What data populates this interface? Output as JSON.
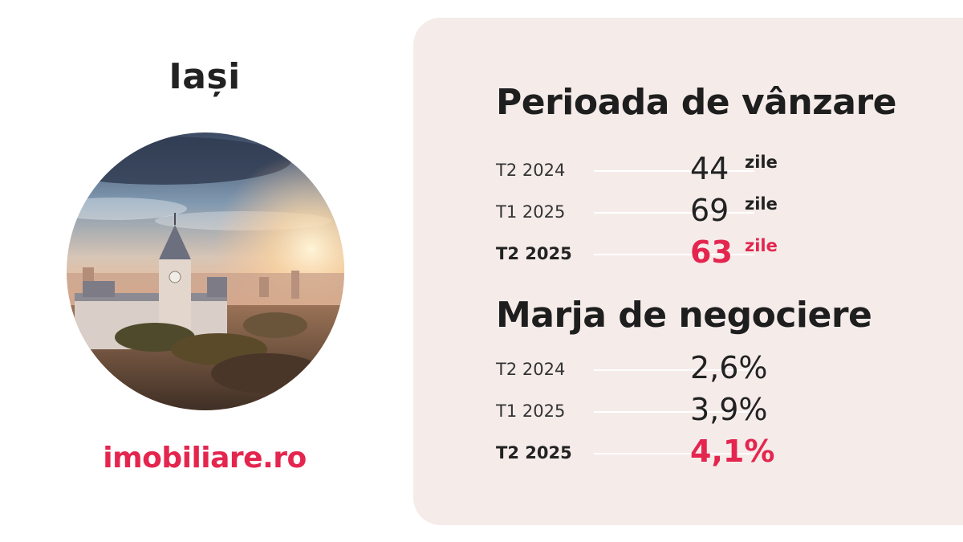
{
  "city": "Iași",
  "brand": {
    "prefix": "imobiliare.ro",
    "color": "#e4264f"
  },
  "sections": [
    {
      "title": "Perioada de vânzare",
      "rows": [
        {
          "period": "T2 2024",
          "value": "44",
          "unit": "zile"
        },
        {
          "period": "T1 2025",
          "value": "69",
          "unit": "zile"
        },
        {
          "period": "T2 2025",
          "value": "63",
          "unit": "zile",
          "highlight": true
        }
      ]
    },
    {
      "title": "Marja de negociere",
      "rows": [
        {
          "period": "T2 2024",
          "value": "2,6%"
        },
        {
          "period": "T1 2025",
          "value": "3,9%"
        },
        {
          "period": "T2 2025",
          "value": "4,1%",
          "highlight": true
        }
      ]
    }
  ],
  "colors": {
    "accent": "#e4264f",
    "panel": "#f5ecea",
    "text": "#1f1f1f"
  },
  "image": {
    "subject": "city-skyline-photo"
  }
}
